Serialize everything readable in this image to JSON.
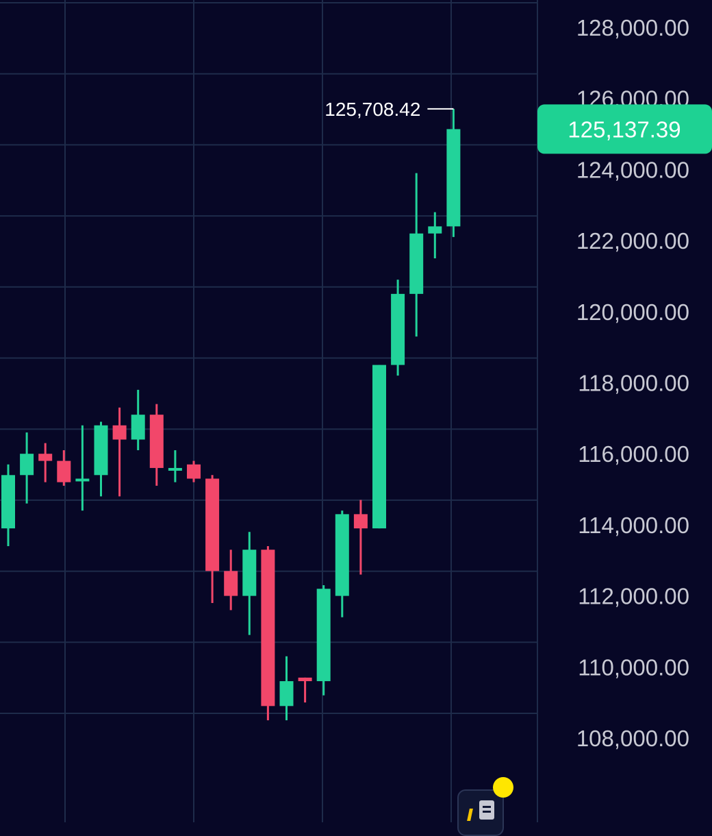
{
  "colors": {
    "background": "#070726",
    "grid": "#1e2b4a",
    "up": "#22d39a",
    "down": "#f2476a",
    "axis_text": "#c8c9d3",
    "price_tag": "#1ed293",
    "notification": "#ffe600"
  },
  "icons": {
    "indicator_button": "indicator-list-icon",
    "notification_dot": "notification-dot-icon"
  },
  "chart_data": {
    "type": "candlestick",
    "y_axis": {
      "position": "right",
      "ticks": [
        108000,
        110000,
        112000,
        114000,
        116000,
        118000,
        120000,
        122000,
        124000,
        126000,
        128000
      ],
      "tick_labels": [
        "108,000.00",
        "110,000.00",
        "112,000.00",
        "114,000.00",
        "116,000.00",
        "118,000.00",
        "120,000.00",
        "122,000.00",
        "124,000.00",
        "126,000.00",
        "128,000.00"
      ],
      "range": [
        106000,
        128900
      ]
    },
    "grid": true,
    "last_price": 125137.39,
    "last_price_label": "125,137.39",
    "high_marker": {
      "value": 125708.42,
      "label": "125,708.42"
    },
    "candles": [
      {
        "open": 113900,
        "high": 115700,
        "low": 113400,
        "close": 115400
      },
      {
        "open": 115400,
        "high": 116600,
        "low": 114600,
        "close": 116000
      },
      {
        "open": 116000,
        "high": 116300,
        "low": 115200,
        "close": 115800
      },
      {
        "open": 115800,
        "high": 116100,
        "low": 115100,
        "close": 115200
      },
      {
        "open": 115300,
        "high": 116800,
        "low": 114400,
        "close": 115300
      },
      {
        "open": 115400,
        "high": 116900,
        "low": 114800,
        "close": 116800
      },
      {
        "open": 116800,
        "high": 117300,
        "low": 114800,
        "close": 116400
      },
      {
        "open": 116400,
        "high": 117800,
        "low": 116100,
        "close": 117100
      },
      {
        "open": 117100,
        "high": 117400,
        "low": 115100,
        "close": 115600
      },
      {
        "open": 115600,
        "high": 116100,
        "low": 115200,
        "close": 115600
      },
      {
        "open": 115700,
        "high": 115800,
        "low": 115200,
        "close": 115300
      },
      {
        "open": 115300,
        "high": 115400,
        "low": 111800,
        "close": 112700
      },
      {
        "open": 112700,
        "high": 113300,
        "low": 111600,
        "close": 112000
      },
      {
        "open": 112000,
        "high": 113800,
        "low": 110900,
        "close": 113300
      },
      {
        "open": 113300,
        "high": 113400,
        "low": 108500,
        "close": 108900
      },
      {
        "open": 108900,
        "high": 110300,
        "low": 108500,
        "close": 109600
      },
      {
        "open": 109700,
        "high": 109700,
        "low": 109000,
        "close": 109600
      },
      {
        "open": 109600,
        "high": 112300,
        "low": 109200,
        "close": 112200
      },
      {
        "open": 112000,
        "high": 114400,
        "low": 111400,
        "close": 114300
      },
      {
        "open": 114300,
        "high": 114700,
        "low": 112600,
        "close": 113900
      },
      {
        "open": 113900,
        "high": 118500,
        "low": 113900,
        "close": 118500
      },
      {
        "open": 118500,
        "high": 120900,
        "low": 118200,
        "close": 120500
      },
      {
        "open": 120500,
        "high": 123900,
        "low": 119300,
        "close": 122200
      },
      {
        "open": 122200,
        "high": 122800,
        "low": 121500,
        "close": 122400
      },
      {
        "open": 122400,
        "high": 125708.42,
        "low": 122100,
        "close": 125137.39
      }
    ]
  }
}
